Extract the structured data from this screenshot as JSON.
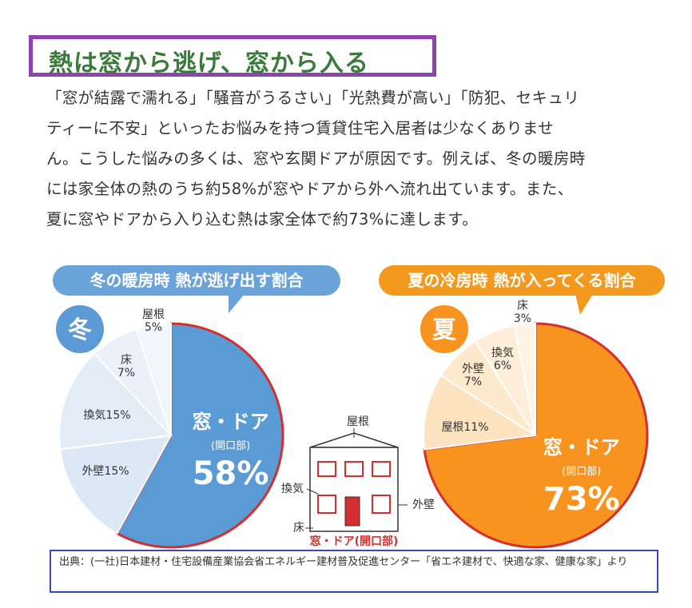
{
  "heading": "熱は窓から逃げ、窓から入る",
  "paragraph": [
    "「窓が結露で濡れる」「騒音がうるさい」「光熱費が高い」「防犯、セキュリ",
    "ティーに不安」といったお悩みを持つ賃貸住宅入居者は少なくありませ",
    "ん。こうした悩みの多くは、窓や玄関ドアが原因です。例えば、冬の暖房時",
    "には家全体の熱のうち約58%が窓やドアから外へ流れ出ています。また、",
    "夏に窓やドアから入り込む熱は家全体で約73%に達します。"
  ],
  "colors": {
    "winter_main": "#5b9bd5",
    "winter_light": "#dce8f6",
    "summer_main": "#f7931e",
    "summer_light": "#fde3bf",
    "accent_red": "#d32f2f",
    "title_border": "#8e44ad",
    "source_border": "#3949ab"
  },
  "chart_data": [
    {
      "type": "pie",
      "title": "冬の暖房時 熱が逃げ出す割合",
      "badge": "冬",
      "slices": [
        {
          "label": "窓・ドア",
          "sublabel": "(開口部)",
          "value": 58,
          "display": "58%"
        },
        {
          "label": "外壁15%",
          "value": 15
        },
        {
          "label": "換気15%",
          "value": 15
        },
        {
          "label": "床",
          "pct": "7%",
          "value": 7
        },
        {
          "label": "屋根",
          "pct": "5%",
          "value": 5
        }
      ]
    },
    {
      "type": "pie",
      "title": "夏の冷房時 熱が入ってくる割合",
      "badge": "夏",
      "slices": [
        {
          "label": "窓・ドア",
          "sublabel": "(開口部)",
          "value": 73,
          "display": "73%"
        },
        {
          "label": "屋根11%",
          "value": 11
        },
        {
          "label": "外壁",
          "pct": "7%",
          "value": 7
        },
        {
          "label": "換気",
          "pct": "6%",
          "value": 6
        },
        {
          "label": "床",
          "pct": "3%",
          "value": 3
        }
      ]
    }
  ],
  "house": {
    "roof": "屋根",
    "vent": "換気",
    "wall": "外壁",
    "floor": "床",
    "opening": "窓・ドア(開口部)"
  },
  "source": "出典：(一社)日本建材・住宅設備産業協会省エネルギー建材普及促進センター「省エネ建材で、快適な家、健康な家」より"
}
